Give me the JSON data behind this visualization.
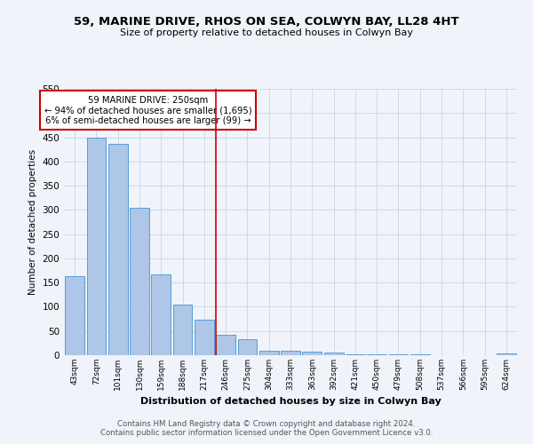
{
  "title": "59, MARINE DRIVE, RHOS ON SEA, COLWYN BAY, LL28 4HT",
  "subtitle": "Size of property relative to detached houses in Colwyn Bay",
  "xlabel": "Distribution of detached houses by size in Colwyn Bay",
  "ylabel": "Number of detached properties",
  "categories": [
    "43sqm",
    "72sqm",
    "101sqm",
    "130sqm",
    "159sqm",
    "188sqm",
    "217sqm",
    "246sqm",
    "275sqm",
    "304sqm",
    "333sqm",
    "363sqm",
    "392sqm",
    "421sqm",
    "450sqm",
    "479sqm",
    "508sqm",
    "537sqm",
    "566sqm",
    "595sqm",
    "624sqm"
  ],
  "values": [
    163,
    450,
    436,
    305,
    166,
    105,
    74,
    43,
    33,
    10,
    10,
    7,
    5,
    2,
    1,
    1,
    1,
    0,
    0,
    0,
    4
  ],
  "bar_color": "#aec6e8",
  "bar_edge_color": "#5b9bd5",
  "vline_color": "#cc0000",
  "annotation_text": "59 MARINE DRIVE: 250sqm\n← 94% of detached houses are smaller (1,695)\n6% of semi-detached houses are larger (99) →",
  "annotation_box_color": "#ffffff",
  "annotation_box_edge_color": "#cc0000",
  "footer_text": "Contains HM Land Registry data © Crown copyright and database right 2024.\nContains public sector information licensed under the Open Government Licence v3.0.",
  "ylim": [
    0,
    550
  ],
  "yticks": [
    0,
    50,
    100,
    150,
    200,
    250,
    300,
    350,
    400,
    450,
    500,
    550
  ],
  "background_color": "#f0f4fa",
  "grid_color": "#c8d4e8"
}
